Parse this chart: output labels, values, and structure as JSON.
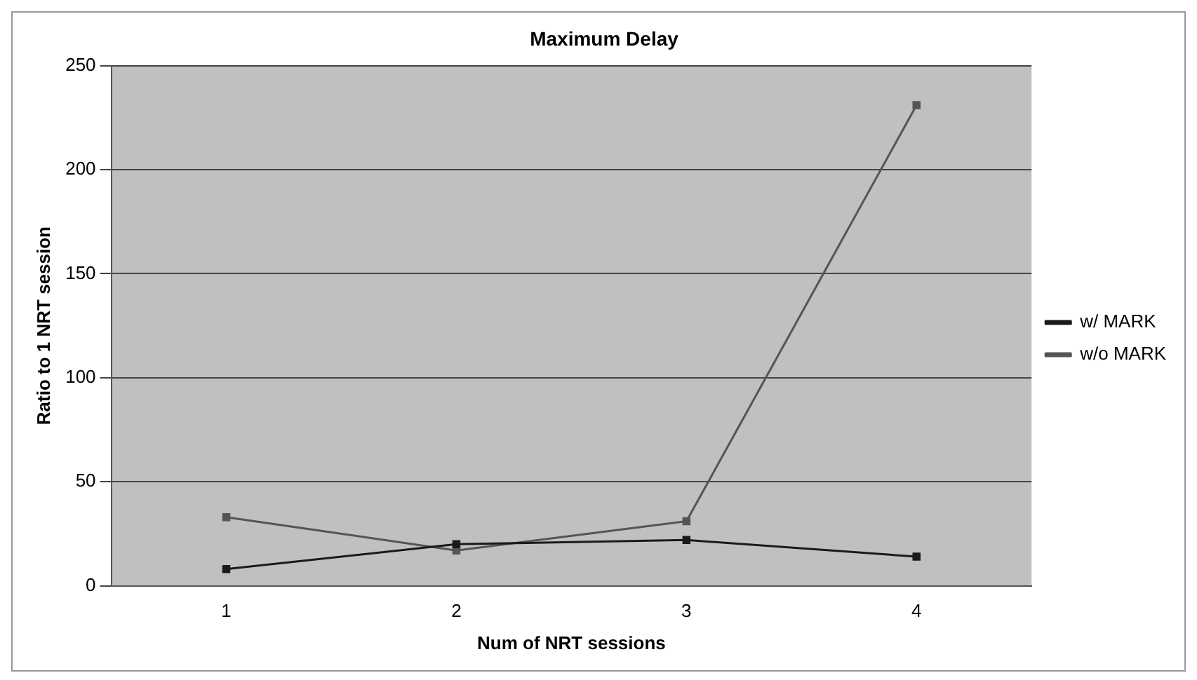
{
  "chart_data": {
    "type": "line",
    "title": "Maximum Delay",
    "xlabel": "Num of NRT sessions",
    "ylabel": "Ratio to 1 NRT session",
    "categories": [
      "1",
      "2",
      "3",
      "4"
    ],
    "series": [
      {
        "name": "w/ MARK",
        "color": "#1a1a1a",
        "values": [
          8,
          20,
          22,
          14
        ]
      },
      {
        "name": "w/o MARK",
        "color": "#555555",
        "values": [
          33,
          17,
          31,
          231
        ]
      }
    ],
    "ylim": [
      0,
      250
    ],
    "yticks": [
      0,
      50,
      100,
      150,
      200,
      250
    ],
    "grid": "y",
    "legend": "right",
    "marker": "square",
    "line_style": "solid"
  }
}
